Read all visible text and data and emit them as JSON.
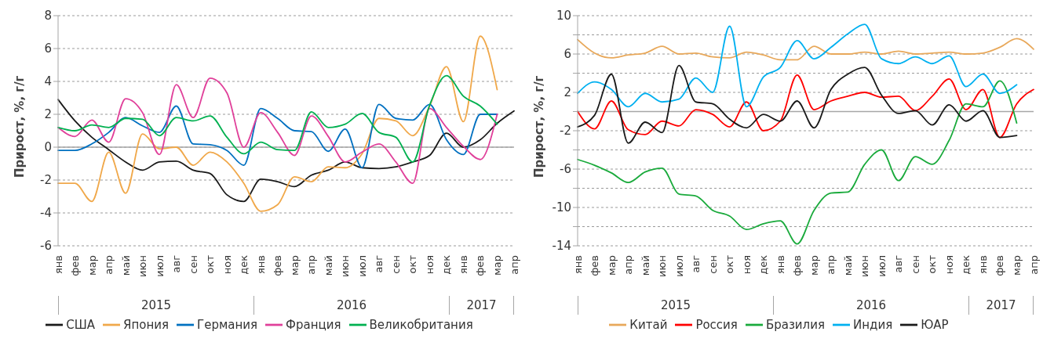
{
  "chart_data": [
    {
      "type": "line",
      "ylabel": "Прирост, %, г/г",
      "categories": [
        "янв",
        "фев",
        "мар",
        "апр",
        "май",
        "июн",
        "июл",
        "авг",
        "сен",
        "окт",
        "ноя",
        "дек",
        "янв",
        "фев",
        "мар",
        "апр",
        "май",
        "июн",
        "июл",
        "авг",
        "сен",
        "окт",
        "ноя",
        "дек",
        "янв",
        "фев",
        "мар",
        "апр"
      ],
      "series": [
        {
          "name": "США",
          "color": "#1a1a1a",
          "values": [
            2.9,
            1.6,
            0.6,
            -0.15,
            -0.9,
            -1.4,
            -0.9,
            -0.85,
            -1.4,
            -1.6,
            -2.9,
            -3.3,
            -1.95,
            -2.1,
            -2.4,
            -1.7,
            -1.4,
            -0.9,
            -1.25,
            -1.3,
            -1.2,
            -0.9,
            -0.5,
            0.85,
            0,
            0.45,
            1.45,
            2.2
          ]
        },
        {
          "name": "Япония",
          "color": "#f0a84a",
          "values": [
            -2.2,
            -2.2,
            -3.3,
            -0.3,
            -2.8,
            0.8,
            -0.1,
            0,
            -1.1,
            -0.3,
            -0.9,
            -2.2,
            -3.9,
            -3.5,
            -1.8,
            -2.1,
            -1.2,
            -1.25,
            -0.4,
            1.75,
            1.6,
            0.7,
            2.5,
            4.9,
            1.55,
            6.75,
            3.5,
            null
          ]
        },
        {
          "name": "Германия",
          "color": "#0070c0",
          "values": [
            -0.2,
            -0.2,
            0.2,
            0.9,
            1.8,
            1.3,
            0.9,
            2.5,
            0.2,
            0.15,
            -0.2,
            -1.1,
            2.35,
            1.75,
            1.0,
            0.95,
            -0.25,
            1.1,
            -1.25,
            2.6,
            1.75,
            1.65,
            2.6,
            0.45,
            -0.45,
            2.0,
            2.0,
            null
          ]
        },
        {
          "name": "Франция",
          "color": "#e0409a",
          "values": [
            1.2,
            0.65,
            1.65,
            0.3,
            2.95,
            2.1,
            -0.45,
            3.8,
            1.8,
            4.2,
            3.3,
            0,
            2.1,
            0.9,
            -0.5,
            1.9,
            0.65,
            -0.9,
            -0.3,
            0.2,
            -0.9,
            -2.2,
            2.35,
            1.2,
            0.05,
            -0.75,
            2.0,
            null
          ]
        },
        {
          "name": "Великобритания",
          "color": "#00b050",
          "values": [
            1.2,
            1.0,
            1.35,
            1.2,
            1.75,
            1.7,
            0.7,
            1.8,
            1.6,
            1.9,
            0.6,
            -0.4,
            0.3,
            -0.15,
            -0.2,
            2.15,
            1.2,
            1.4,
            2.05,
            0.9,
            0.6,
            -0.9,
            2.55,
            4.35,
            3.1,
            2.5,
            1.4,
            null
          ]
        }
      ],
      "ylim": [
        -6,
        8
      ],
      "yticks": [
        -6,
        -4,
        -2,
        0,
        2,
        4,
        6,
        8
      ],
      "grid": "y",
      "legend": "bottom",
      "marker": "none",
      "line_style": "solid",
      "ref_lines": [
        {
          "axis": "y",
          "value": 0,
          "color": "#a6a6a6"
        }
      ],
      "annotations": [
        "2015",
        "2016",
        "2017"
      ]
    },
    {
      "type": "line",
      "ylabel": "Прирост, %, г/г",
      "categories": [
        "янв",
        "фев",
        "мар",
        "апр",
        "май",
        "июн",
        "июл",
        "авг",
        "сен",
        "окт",
        "ноя",
        "дек",
        "янв",
        "фев",
        "мар",
        "апр",
        "май",
        "июн",
        "июл",
        "авг",
        "сен",
        "окт",
        "ноя",
        "дек",
        "янв",
        "фев",
        "мар",
        "апр"
      ],
      "series": [
        {
          "name": "Китай",
          "color": "#e8a85a",
          "values": [
            7.5,
            6.1,
            5.6,
            5.9,
            6.1,
            6.8,
            6.0,
            6.1,
            5.7,
            5.6,
            6.2,
            5.9,
            5.4,
            5.4,
            6.8,
            6.0,
            6.0,
            6.2,
            6.0,
            6.3,
            6.0,
            6.1,
            6.2,
            6.0,
            6.1,
            6.7,
            7.6,
            6.5
          ]
        },
        {
          "name": "Россия",
          "color": "#ff0000",
          "values": [
            0,
            -1.8,
            1.1,
            -1.9,
            -2.4,
            -1.0,
            -1.5,
            0.2,
            -0.3,
            -1.6,
            1.0,
            -2.0,
            -1.0,
            3.8,
            0.2,
            1.1,
            1.6,
            2.0,
            1.5,
            1.6,
            0.1,
            1.6,
            3.4,
            0.2,
            2.3,
            -2.7,
            0.8,
            2.3
          ]
        },
        {
          "name": "Бразилия",
          "color": "#1aaa3c",
          "values": [
            -5.0,
            -5.6,
            -6.4,
            -7.4,
            -6.3,
            -5.9,
            -8.6,
            -8.8,
            -10.3,
            -10.9,
            -12.3,
            -11.7,
            -11.4,
            -13.8,
            -10.3,
            -8.5,
            -8.4,
            -5.5,
            -4.0,
            -7.2,
            -4.7,
            -5.5,
            -3.0,
            0.8,
            0.5,
            3.2,
            -1.2,
            null
          ]
        },
        {
          "name": "Индия",
          "color": "#00b0f0",
          "values": [
            1.9,
            3.1,
            2.3,
            0.5,
            1.9,
            1.0,
            1.3,
            3.5,
            2.0,
            8.9,
            0.5,
            3.6,
            4.6,
            7.4,
            5.5,
            6.7,
            8.1,
            9.1,
            5.5,
            5.0,
            5.7,
            5.0,
            5.8,
            2.6,
            3.9,
            1.9,
            2.8,
            null
          ]
        },
        {
          "name": "ЮАР",
          "color": "#1a1a1a",
          "values": [
            -1.6,
            -0.4,
            3.9,
            -3.3,
            -1.1,
            -2.2,
            4.8,
            1.0,
            0.8,
            -0.8,
            -1.7,
            -0.3,
            -1.0,
            1.1,
            -1.7,
            2.3,
            3.9,
            4.6,
            1.7,
            -0.2,
            0.1,
            -1.4,
            0.7,
            -1.0,
            0.1,
            -2.7,
            -2.5,
            null
          ]
        }
      ],
      "ylim": [
        -14,
        10
      ],
      "yticks": [
        -14,
        {
          "value": -12,
          "label": null
        },
        -10,
        {
          "value": -8,
          "label": null
        },
        -6,
        {
          "value": -4,
          "label": null
        },
        -2,
        {
          "value": 0,
          "label": null
        },
        2,
        {
          "value": 4,
          "label": null
        },
        6,
        {
          "value": 8,
          "label": null
        },
        10
      ],
      "grid": "y",
      "legend": "bottom",
      "marker": "none",
      "line_style": "solid",
      "ref_lines": [
        {
          "axis": "y",
          "value": 0,
          "color": "#a6a6a6"
        }
      ],
      "annotations": [
        "2015",
        "2016",
        "2017"
      ]
    }
  ]
}
